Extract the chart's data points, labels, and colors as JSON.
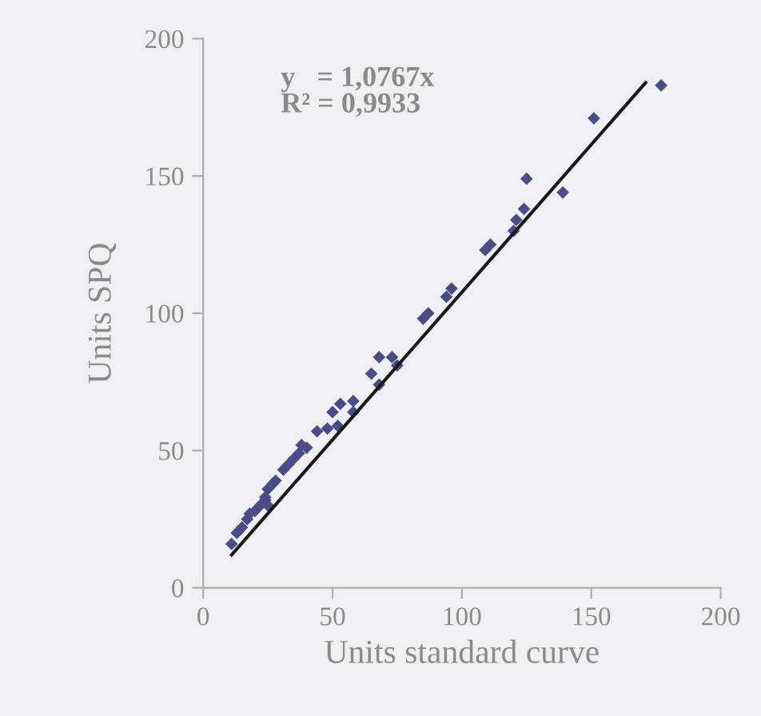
{
  "chart_data": {
    "type": "scatter",
    "xlabel": "Units standard curve",
    "ylabel": "Units SPQ",
    "annotations": [
      "y   = 1,0767x\nR² = 0,9933"
    ],
    "xlim": [
      0,
      200
    ],
    "ylim": [
      0,
      200
    ],
    "xticks": [
      0,
      50,
      100,
      150,
      200
    ],
    "yticks": [
      0,
      50,
      100,
      150,
      200
    ],
    "grid": false,
    "legend": false,
    "marker": "diamond",
    "series": [
      {
        "color": "#4b4b85",
        "x": [
          177,
          151,
          125,
          139,
          124,
          121,
          120,
          111,
          109,
          96,
          94,
          87,
          85,
          73,
          68,
          65,
          75,
          68,
          58,
          53,
          50,
          58,
          52,
          48,
          44,
          40,
          37,
          35,
          31,
          28,
          25,
          24,
          22,
          20,
          17,
          15,
          13,
          11,
          38,
          33,
          27,
          24,
          18,
          25
        ],
        "values": [
          183,
          171,
          149,
          144,
          138,
          134,
          130,
          125,
          123,
          109,
          106,
          100,
          98,
          84,
          84,
          78,
          81,
          74,
          68,
          67,
          64,
          64,
          59,
          58,
          57,
          51,
          49,
          47,
          43,
          39,
          36,
          33,
          30,
          28,
          25,
          22,
          20,
          16,
          52,
          45,
          38,
          32,
          27,
          30
        ]
      },
      {
        "type": "line",
        "color": "#1a1a1a",
        "line_style": "solid",
        "marker": "none",
        "x": [
          11,
          171
        ],
        "values": [
          12,
          184
        ]
      }
    ]
  }
}
